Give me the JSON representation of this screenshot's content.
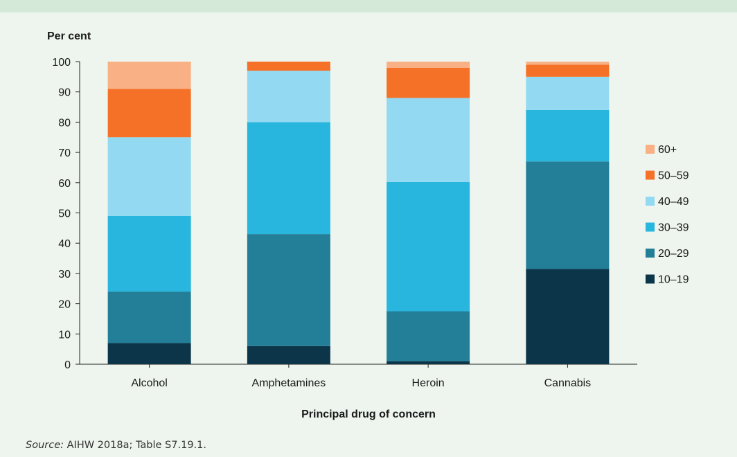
{
  "source": {
    "label": "Source:",
    "text": "AIHW 2018a; Table S7.19.1."
  },
  "chart_data": {
    "type": "bar",
    "stacked": true,
    "ylabel": "Per cent",
    "xlabel": "Principal drug of concern",
    "ylim": [
      0,
      100
    ],
    "yticks": [
      0,
      10,
      20,
      30,
      40,
      50,
      60,
      70,
      80,
      90,
      100
    ],
    "categories": [
      "Alcohol",
      "Amphetamines",
      "Heroin",
      "Cannabis"
    ],
    "legend_position": "right",
    "series": [
      {
        "name": "10–19",
        "color": "#0c3549",
        "values": [
          7,
          6,
          1,
          31.5
        ]
      },
      {
        "name": "20–29",
        "color": "#237f98",
        "values": [
          17,
          37,
          16.5,
          35.5
        ]
      },
      {
        "name": "30–39",
        "color": "#28b5de",
        "values": [
          25,
          37,
          42.7,
          17
        ]
      },
      {
        "name": "40–49",
        "color": "#92d9f1",
        "values": [
          26,
          17,
          27.8,
          11
        ]
      },
      {
        "name": "50–59",
        "color": "#f47127",
        "values": [
          16,
          3,
          10,
          4
        ]
      },
      {
        "name": "60+",
        "color": "#f9b085",
        "values": [
          9,
          0,
          2,
          1
        ]
      }
    ]
  }
}
